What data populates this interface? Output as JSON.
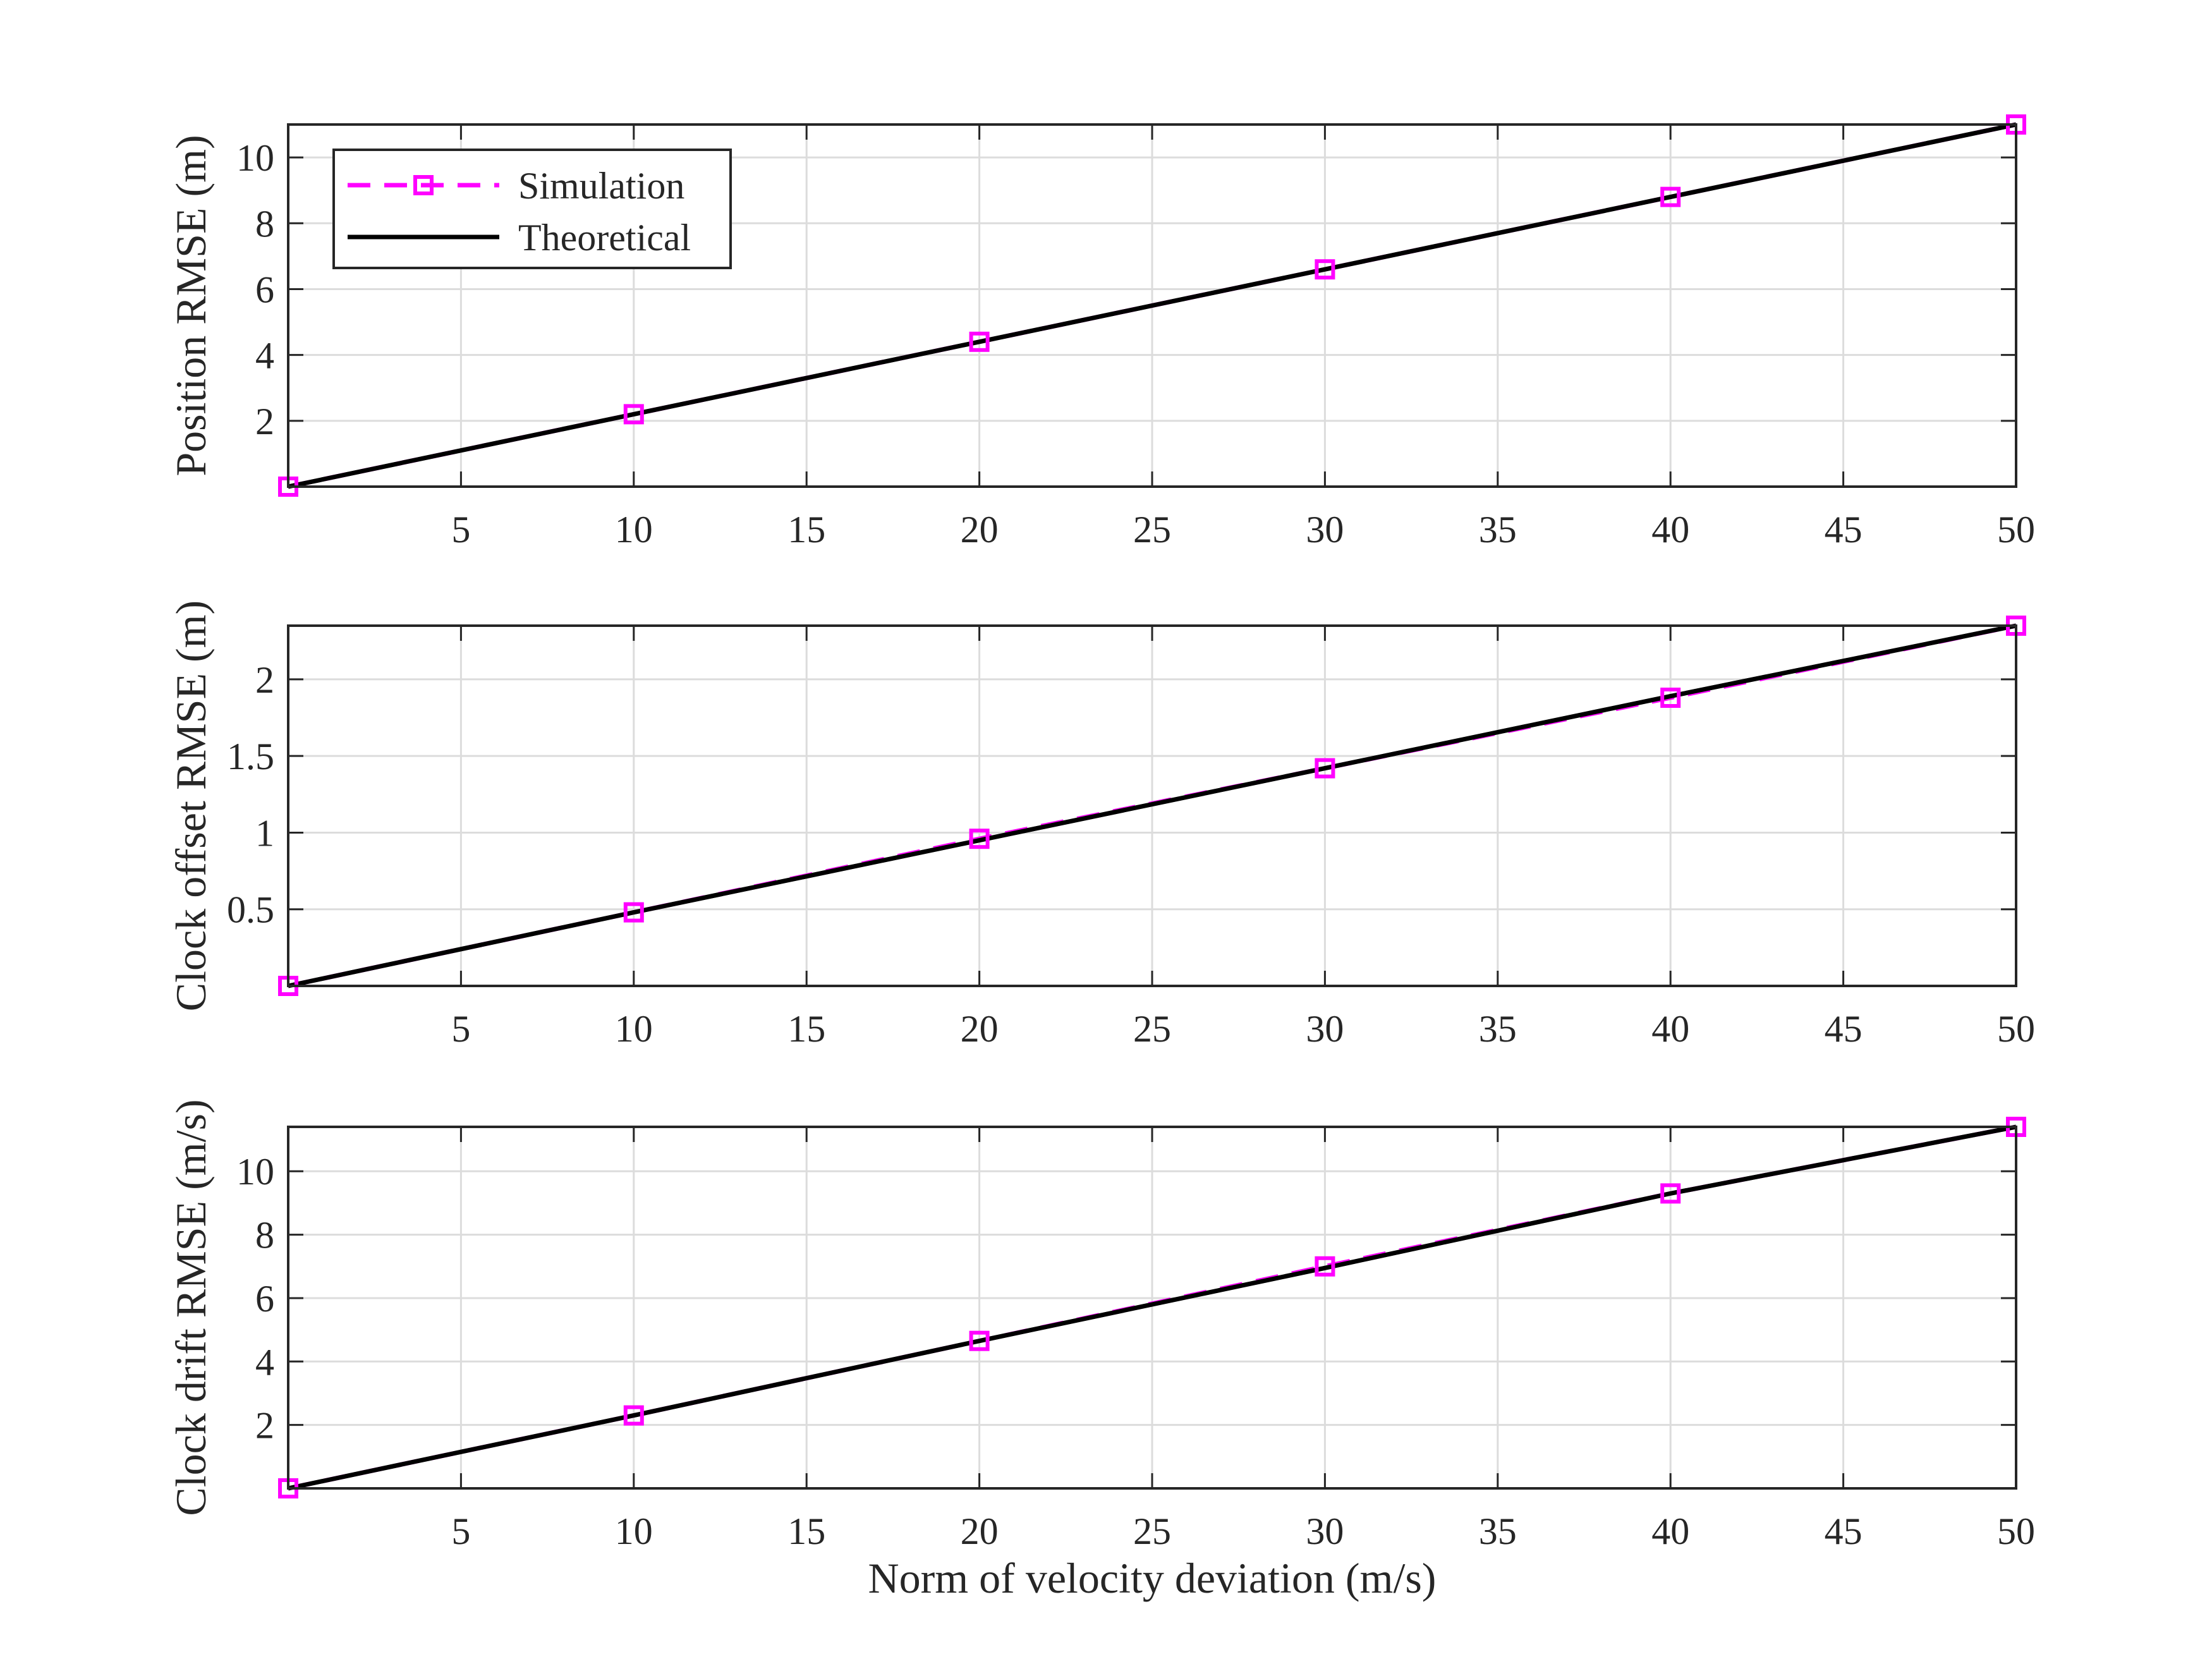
{
  "chart_data": [
    {
      "type": "line",
      "ylabel": "Position RMSE (m)",
      "xlabel": "",
      "x": [
        0,
        10,
        20,
        30,
        40,
        50
      ],
      "xlim": [
        0,
        50
      ],
      "ylim": [
        0,
        11
      ],
      "xticks": [
        5,
        10,
        15,
        20,
        25,
        30,
        35,
        40,
        45,
        50
      ],
      "yticks": [
        2,
        4,
        6,
        8,
        10
      ],
      "grid": true,
      "legend": "top-left",
      "series": [
        {
          "name": "Simulation",
          "values": [
            0,
            2.2,
            4.4,
            6.6,
            8.8,
            11.0
          ],
          "color": "#ff00ff",
          "style": "dashed",
          "marker": "square"
        },
        {
          "name": "Theoretical",
          "values": [
            0,
            2.2,
            4.4,
            6.6,
            8.8,
            11.0
          ],
          "color": "#000000",
          "style": "solid",
          "marker": "none"
        }
      ]
    },
    {
      "type": "line",
      "ylabel": "Clock offset RMSE (m)",
      "xlabel": "",
      "x": [
        0,
        10,
        20,
        30,
        40,
        50
      ],
      "xlim": [
        0,
        50
      ],
      "ylim": [
        0,
        2.35
      ],
      "xticks": [
        5,
        10,
        15,
        20,
        25,
        30,
        35,
        40,
        45,
        50
      ],
      "yticks": [
        0.5,
        1,
        1.5,
        2
      ],
      "grid": true,
      "series": [
        {
          "name": "Simulation",
          "values": [
            0,
            0.48,
            0.96,
            1.42,
            1.88,
            2.35
          ],
          "color": "#ff00ff",
          "style": "dashed",
          "marker": "square"
        },
        {
          "name": "Theoretical",
          "values": [
            0,
            0.48,
            0.95,
            1.42,
            1.89,
            2.35
          ],
          "color": "#000000",
          "style": "solid",
          "marker": "none"
        }
      ]
    },
    {
      "type": "line",
      "ylabel": "Clock drift RMSE (m/s)",
      "xlabel": "Norm of velocity deviation (m/s)",
      "x": [
        0,
        10,
        20,
        30,
        40,
        50
      ],
      "xlim": [
        0,
        50
      ],
      "ylim": [
        0,
        11.4
      ],
      "xticks": [
        5,
        10,
        15,
        20,
        25,
        30,
        35,
        40,
        45,
        50
      ],
      "yticks": [
        2,
        4,
        6,
        8,
        10
      ],
      "grid": true,
      "series": [
        {
          "name": "Simulation",
          "values": [
            0,
            2.3,
            4.65,
            7.0,
            9.3,
            11.4
          ],
          "color": "#ff00ff",
          "style": "dashed",
          "marker": "square"
        },
        {
          "name": "Theoretical",
          "values": [
            0,
            2.3,
            4.65,
            6.95,
            9.3,
            11.4
          ],
          "color": "#000000",
          "style": "solid",
          "marker": "none"
        }
      ]
    }
  ]
}
